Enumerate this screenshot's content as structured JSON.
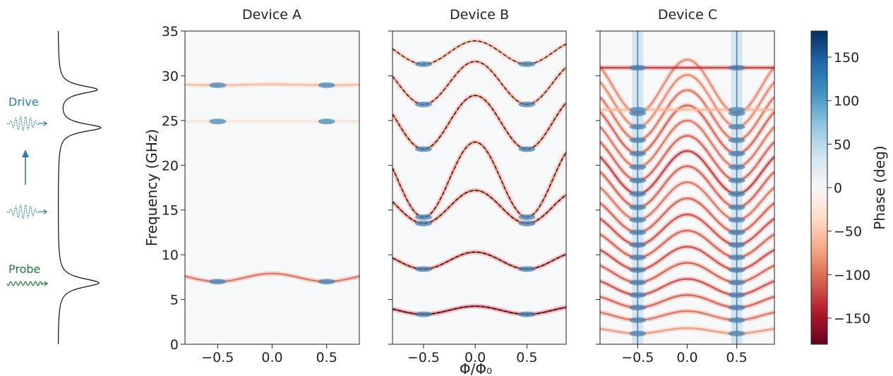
{
  "schematic": {
    "drive_label": "Drive",
    "probe_label": "Probe",
    "drive_color": "#2a7bb6",
    "probe_color": "#1f7a3a"
  },
  "colorbar": {
    "label": "Phase (deg)",
    "range": [
      -180,
      180
    ],
    "ticks": [
      "150",
      "100",
      "50",
      "0",
      "−50",
      "−100",
      "−150"
    ],
    "tick_values": [
      150,
      100,
      50,
      0,
      -50,
      -100,
      -150
    ],
    "colormap": "RdBu"
  },
  "chart_data": [
    {
      "type": "heatmap",
      "title": "Device A",
      "xlabel": "",
      "ylabel": "Frequency (GHz)",
      "xlim": [
        -0.8,
        0.8
      ],
      "ylim": [
        0,
        35
      ],
      "xticks": [
        "−0.5",
        "0.0",
        "0.5"
      ],
      "xtick_values": [
        -0.5,
        0.0,
        0.5
      ],
      "yticks": [
        "0",
        "5",
        "10",
        "15",
        "20",
        "25",
        "30",
        "35"
      ],
      "ytick_values": [
        0,
        5,
        10,
        15,
        20,
        25,
        30,
        35
      ],
      "bands": [
        {
          "mean": 7.45,
          "amp": 0.45,
          "phase": -100
        },
        {
          "mean": 29.0,
          "amp": 0.05,
          "phase": -60
        },
        {
          "mean": 24.9,
          "amp": 0.0,
          "phase": -30
        }
      ]
    },
    {
      "type": "heatmap",
      "title": "Device B",
      "xlabel": "Φ/Φ₀",
      "ylabel": "",
      "xlim": [
        -0.8,
        0.88
      ],
      "ylim": [
        0,
        35
      ],
      "xticks": [
        "−0.5",
        "0.0",
        "0.5"
      ],
      "xtick_values": [
        -0.5,
        0.0,
        0.5
      ],
      "bands": [
        {
          "mean": 3.8,
          "amp": 0.45,
          "phase": -140
        },
        {
          "mean": 9.35,
          "amp": 0.95,
          "phase": -120
        },
        {
          "mean": 15.35,
          "amp": 1.85,
          "phase": -110
        },
        {
          "mean": 18.4,
          "amp": 4.2,
          "phase": -100
        },
        {
          "mean": 24.8,
          "amp": 3.0,
          "phase": -100
        },
        {
          "mean": 29.2,
          "amp": 2.4,
          "phase": -90
        },
        {
          "mean": 32.6,
          "amp": 1.3,
          "phase": -80
        }
      ]
    },
    {
      "type": "heatmap",
      "title": "Device C",
      "xlabel": "",
      "ylabel": "",
      "xlim": [
        -0.88,
        0.88
      ],
      "ylim": [
        0,
        35
      ],
      "xticks": [
        "−0.5",
        "0.0",
        "0.5"
      ],
      "xtick_values": [
        -0.5,
        0.0,
        0.5
      ],
      "bands": [
        {
          "mean": 1.5,
          "amp": 0.3,
          "phase": -80
        },
        {
          "mean": 3.2,
          "amp": 0.5,
          "phase": -100
        },
        {
          "mean": 4.8,
          "amp": 0.7,
          "phase": -110
        },
        {
          "mean": 6.4,
          "amp": 0.9,
          "phase": -120
        },
        {
          "mean": 8.0,
          "amp": 1.1,
          "phase": -110
        },
        {
          "mean": 9.6,
          "amp": 1.3,
          "phase": -120
        },
        {
          "mean": 11.2,
          "amp": 1.5,
          "phase": -110
        },
        {
          "mean": 12.8,
          "amp": 1.7,
          "phase": -120
        },
        {
          "mean": 14.4,
          "amp": 1.9,
          "phase": -110
        },
        {
          "mean": 16.0,
          "amp": 2.1,
          "phase": -100
        },
        {
          "mean": 17.6,
          "amp": 2.3,
          "phase": -110
        },
        {
          "mean": 19.2,
          "amp": 2.4,
          "phase": -130
        },
        {
          "mean": 20.8,
          "amp": 2.5,
          "phase": -110
        },
        {
          "mean": 22.4,
          "amp": 2.6,
          "phase": -100
        },
        {
          "mean": 24.0,
          "amp": 2.7,
          "phase": -110
        },
        {
          "mean": 25.6,
          "amp": 2.8,
          "phase": -100
        },
        {
          "mean": 27.2,
          "amp": 2.9,
          "phase": -90
        },
        {
          "mean": 28.8,
          "amp": 3.0,
          "phase": -90
        },
        {
          "mean": 30.9,
          "amp": 0.0,
          "phase": -130
        },
        {
          "mean": 26.2,
          "amp": 0.0,
          "phase": -60
        }
      ]
    }
  ]
}
